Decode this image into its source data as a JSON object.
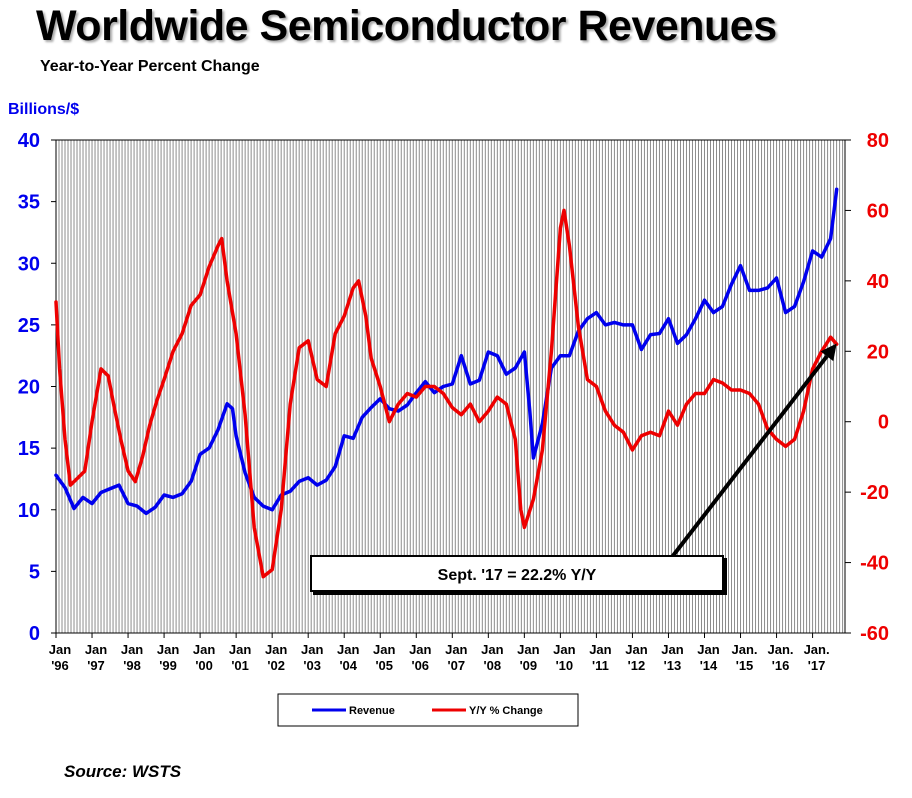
{
  "chart_data": {
    "type": "line",
    "title": "Worldwide Semiconductor Revenues",
    "subtitle": "Year-to-Year Percent Change",
    "y_left_label": "Billions/$",
    "y_left_range": [
      0,
      40
    ],
    "y_left_ticks": [
      "0",
      "5",
      "10",
      "15",
      "20",
      "25",
      "30",
      "35",
      "40"
    ],
    "y_right_range": [
      -60,
      80
    ],
    "y_right_ticks": [
      "-60",
      "-40",
      "-20",
      "0",
      "20",
      "40",
      "60",
      "80"
    ],
    "x_range": [
      1996.0,
      2017.9
    ],
    "x_ticks": [
      {
        "x": 1996,
        "l1": "Jan",
        "l2": "'96"
      },
      {
        "x": 1997,
        "l1": "Jan",
        "l2": "'97"
      },
      {
        "x": 1998,
        "l1": "Jan",
        "l2": "'98"
      },
      {
        "x": 1999,
        "l1": "Jan",
        "l2": "'99"
      },
      {
        "x": 2000,
        "l1": "Jan",
        "l2": "'00"
      },
      {
        "x": 2001,
        "l1": "Jan",
        "l2": "'01"
      },
      {
        "x": 2002,
        "l1": "Jan",
        "l2": "'02"
      },
      {
        "x": 2003,
        "l1": "Jan",
        "l2": "'03"
      },
      {
        "x": 2004,
        "l1": "Jan",
        "l2": "'04"
      },
      {
        "x": 2005,
        "l1": "Jan",
        "l2": "'05"
      },
      {
        "x": 2006,
        "l1": "Jan",
        "l2": "'06"
      },
      {
        "x": 2007,
        "l1": "Jan",
        "l2": "'07"
      },
      {
        "x": 2008,
        "l1": "Jan",
        "l2": "'08"
      },
      {
        "x": 2009,
        "l1": "Jan",
        "l2": "'09"
      },
      {
        "x": 2010,
        "l1": "Jan",
        "l2": "'10"
      },
      {
        "x": 2011,
        "l1": "Jan",
        "l2": "'11"
      },
      {
        "x": 2012,
        "l1": "Jan",
        "l2": "'12"
      },
      {
        "x": 2013,
        "l1": "Jan",
        "l2": "'13"
      },
      {
        "x": 2014,
        "l1": "Jan",
        "l2": "'14"
      },
      {
        "x": 2015,
        "l1": "Jan.",
        "l2": "'15"
      },
      {
        "x": 2016,
        "l1": "Jan.",
        "l2": "'16"
      },
      {
        "x": 2017,
        "l1": "Jan.",
        "l2": "'17"
      }
    ],
    "grid": "vertical-monthly",
    "legend_position": "bottom-center",
    "annotation": "Sept. '17 = 22.2% Y/Y",
    "annotation_target": {
      "x": 2017.67,
      "y_right": 22.2
    },
    "series": [
      {
        "name": "Revenue",
        "axis": "left",
        "color": "#0000ee",
        "points": [
          [
            1996.0,
            12.8
          ],
          [
            1996.25,
            11.8
          ],
          [
            1996.5,
            10.1
          ],
          [
            1996.75,
            11.0
          ],
          [
            1997.0,
            10.5
          ],
          [
            1997.25,
            11.4
          ],
          [
            1997.5,
            11.7
          ],
          [
            1997.75,
            12.0
          ],
          [
            1998.0,
            10.5
          ],
          [
            1998.25,
            10.3
          ],
          [
            1998.5,
            9.7
          ],
          [
            1998.75,
            10.2
          ],
          [
            1999.0,
            11.2
          ],
          [
            1999.25,
            11.0
          ],
          [
            1999.5,
            11.3
          ],
          [
            1999.75,
            12.3
          ],
          [
            2000.0,
            14.5
          ],
          [
            2000.25,
            15.0
          ],
          [
            2000.5,
            16.5
          ],
          [
            2000.75,
            18.6
          ],
          [
            2000.9,
            18.2
          ],
          [
            2001.0,
            16.0
          ],
          [
            2001.25,
            13.0
          ],
          [
            2001.5,
            11.0
          ],
          [
            2001.75,
            10.3
          ],
          [
            2002.0,
            10.0
          ],
          [
            2002.25,
            11.2
          ],
          [
            2002.5,
            11.5
          ],
          [
            2002.75,
            12.3
          ],
          [
            2003.0,
            12.6
          ],
          [
            2003.25,
            12.0
          ],
          [
            2003.5,
            12.4
          ],
          [
            2003.75,
            13.5
          ],
          [
            2004.0,
            16.0
          ],
          [
            2004.25,
            15.8
          ],
          [
            2004.5,
            17.5
          ],
          [
            2004.75,
            18.3
          ],
          [
            2005.0,
            19.0
          ],
          [
            2005.25,
            18.2
          ],
          [
            2005.5,
            18.0
          ],
          [
            2005.75,
            18.5
          ],
          [
            2006.0,
            19.5
          ],
          [
            2006.25,
            20.4
          ],
          [
            2006.5,
            19.5
          ],
          [
            2006.75,
            20.0
          ],
          [
            2007.0,
            20.2
          ],
          [
            2007.25,
            22.5
          ],
          [
            2007.5,
            20.2
          ],
          [
            2007.75,
            20.5
          ],
          [
            2008.0,
            22.8
          ],
          [
            2008.25,
            22.5
          ],
          [
            2008.5,
            21.0
          ],
          [
            2008.75,
            21.5
          ],
          [
            2009.0,
            22.8
          ],
          [
            2009.15,
            18.0
          ],
          [
            2009.25,
            14.2
          ],
          [
            2009.5,
            17.0
          ],
          [
            2009.75,
            21.5
          ],
          [
            2010.0,
            22.5
          ],
          [
            2010.25,
            22.5
          ],
          [
            2010.5,
            24.5
          ],
          [
            2010.75,
            25.5
          ],
          [
            2011.0,
            26.0
          ],
          [
            2011.25,
            25.0
          ],
          [
            2011.5,
            25.2
          ],
          [
            2011.75,
            25.0
          ],
          [
            2012.0,
            25.0
          ],
          [
            2012.25,
            23.0
          ],
          [
            2012.5,
            24.2
          ],
          [
            2012.75,
            24.3
          ],
          [
            2013.0,
            25.5
          ],
          [
            2013.25,
            23.5
          ],
          [
            2013.5,
            24.2
          ],
          [
            2013.75,
            25.5
          ],
          [
            2014.0,
            27.0
          ],
          [
            2014.25,
            26.0
          ],
          [
            2014.5,
            26.5
          ],
          [
            2014.75,
            28.3
          ],
          [
            2015.0,
            29.8
          ],
          [
            2015.25,
            27.8
          ],
          [
            2015.5,
            27.8
          ],
          [
            2015.75,
            28.0
          ],
          [
            2016.0,
            28.8
          ],
          [
            2016.25,
            26.0
          ],
          [
            2016.5,
            26.5
          ],
          [
            2016.75,
            28.5
          ],
          [
            2017.0,
            31.0
          ],
          [
            2017.25,
            30.5
          ],
          [
            2017.5,
            32.0
          ],
          [
            2017.67,
            36.0
          ]
        ]
      },
      {
        "name": "Y/Y % Change",
        "axis": "right",
        "color": "#ee0000",
        "points": [
          [
            1996.0,
            34
          ],
          [
            1996.1,
            15
          ],
          [
            1996.25,
            -5
          ],
          [
            1996.4,
            -18
          ],
          [
            1996.6,
            -16
          ],
          [
            1996.8,
            -14
          ],
          [
            1997.0,
            0
          ],
          [
            1997.25,
            15
          ],
          [
            1997.45,
            13
          ],
          [
            1997.6,
            5
          ],
          [
            1997.8,
            -5
          ],
          [
            1998.0,
            -14
          ],
          [
            1998.2,
            -17
          ],
          [
            1998.4,
            -10
          ],
          [
            1998.6,
            -1
          ],
          [
            1998.8,
            6
          ],
          [
            1999.0,
            12
          ],
          [
            1999.25,
            20
          ],
          [
            1999.5,
            25
          ],
          [
            1999.75,
            33
          ],
          [
            2000.0,
            36
          ],
          [
            2000.25,
            44
          ],
          [
            2000.5,
            50
          ],
          [
            2000.6,
            52
          ],
          [
            2000.75,
            40
          ],
          [
            2001.0,
            25
          ],
          [
            2001.25,
            2
          ],
          [
            2001.5,
            -30
          ],
          [
            2001.75,
            -44
          ],
          [
            2002.0,
            -42
          ],
          [
            2002.25,
            -25
          ],
          [
            2002.5,
            5
          ],
          [
            2002.75,
            21
          ],
          [
            2003.0,
            23
          ],
          [
            2003.25,
            12
          ],
          [
            2003.5,
            10
          ],
          [
            2003.75,
            25
          ],
          [
            2004.0,
            30
          ],
          [
            2004.25,
            38
          ],
          [
            2004.4,
            40
          ],
          [
            2004.6,
            30
          ],
          [
            2004.75,
            18
          ],
          [
            2005.0,
            10
          ],
          [
            2005.25,
            0
          ],
          [
            2005.5,
            5
          ],
          [
            2005.75,
            8
          ],
          [
            2006.0,
            7
          ],
          [
            2006.25,
            10
          ],
          [
            2006.5,
            10
          ],
          [
            2006.75,
            8
          ],
          [
            2007.0,
            4
          ],
          [
            2007.25,
            2
          ],
          [
            2007.5,
            5
          ],
          [
            2007.75,
            0
          ],
          [
            2008.0,
            3
          ],
          [
            2008.25,
            7
          ],
          [
            2008.5,
            5
          ],
          [
            2008.75,
            -5
          ],
          [
            2008.9,
            -25
          ],
          [
            2009.0,
            -30
          ],
          [
            2009.25,
            -22
          ],
          [
            2009.5,
            -8
          ],
          [
            2009.75,
            20
          ],
          [
            2010.0,
            55
          ],
          [
            2010.1,
            60
          ],
          [
            2010.25,
            50
          ],
          [
            2010.5,
            27
          ],
          [
            2010.75,
            12
          ],
          [
            2011.0,
            10
          ],
          [
            2011.25,
            3
          ],
          [
            2011.5,
            -1
          ],
          [
            2011.75,
            -3
          ],
          [
            2012.0,
            -8
          ],
          [
            2012.25,
            -4
          ],
          [
            2012.5,
            -3
          ],
          [
            2012.75,
            -4
          ],
          [
            2013.0,
            3
          ],
          [
            2013.25,
            -1
          ],
          [
            2013.5,
            5
          ],
          [
            2013.75,
            8
          ],
          [
            2014.0,
            8
          ],
          [
            2014.25,
            12
          ],
          [
            2014.5,
            11
          ],
          [
            2014.75,
            9
          ],
          [
            2015.0,
            9
          ],
          [
            2015.25,
            8
          ],
          [
            2015.5,
            5
          ],
          [
            2015.75,
            -2
          ],
          [
            2016.0,
            -5
          ],
          [
            2016.25,
            -7
          ],
          [
            2016.5,
            -5
          ],
          [
            2016.75,
            3
          ],
          [
            2017.0,
            15
          ],
          [
            2017.25,
            20
          ],
          [
            2017.5,
            24
          ],
          [
            2017.67,
            22
          ]
        ]
      }
    ]
  }
}
